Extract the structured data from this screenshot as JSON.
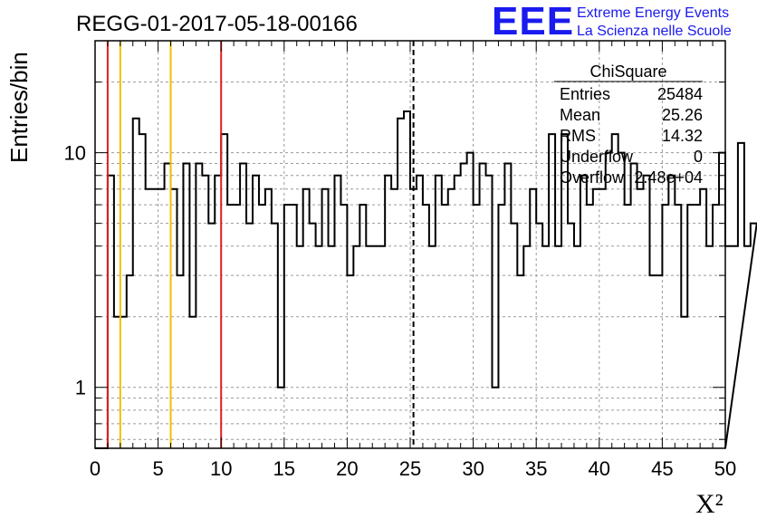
{
  "header": {
    "title": "REGG-01-2017-05-18-00166",
    "logo_text": "EEE",
    "logo_line1": "Extreme Energy Events",
    "logo_line2": "La Scienza nelle Scuole"
  },
  "stats": {
    "title": "ChiSquare",
    "rows": [
      {
        "label": "Entries",
        "value": "25484"
      },
      {
        "label": "Mean",
        "value": "25.26"
      },
      {
        "label": "RMS",
        "value": "14.32"
      },
      {
        "label": "Underflow",
        "value": "0"
      },
      {
        "label": "Overflow",
        "value": "2.48e+04"
      }
    ]
  },
  "chart_data": {
    "type": "bar",
    "title": "REGG-01-2017-05-18-00166",
    "xlabel": "X²",
    "ylabel": "Entries/bin",
    "xlim": [
      0,
      50
    ],
    "ylim": [
      0.55,
      30
    ],
    "log_y": true,
    "grid": true,
    "bin_width": 0.5,
    "x_ticks": [
      "0",
      "5",
      "10",
      "15",
      "20",
      "25",
      "30",
      "35",
      "40",
      "45",
      "50"
    ],
    "y_ticks": [
      "1",
      "10"
    ],
    "values": [
      0,
      0,
      8,
      2,
      2,
      3,
      14,
      12,
      7,
      7,
      7,
      9,
      7,
      3,
      9,
      2,
      9,
      8,
      5,
      8,
      12,
      6,
      6,
      9,
      5,
      8,
      6,
      7,
      5,
      1,
      6,
      6,
      4,
      7,
      5,
      4,
      7,
      4,
      8,
      6,
      3,
      4,
      6,
      4,
      4,
      4,
      8,
      7,
      14,
      15,
      7,
      8,
      6,
      4,
      8,
      6,
      7,
      8,
      9,
      10,
      6,
      9,
      8,
      1,
      6,
      9,
      5,
      3,
      4,
      7,
      5,
      4,
      12,
      4,
      12,
      5,
      4,
      8,
      6,
      7,
      7,
      10,
      12,
      10,
      6,
      9,
      7,
      8,
      3,
      3,
      6,
      8,
      6,
      2,
      6,
      6,
      7,
      4,
      6,
      10,
      4,
      4,
      11,
      4,
      5
    ],
    "vertical_lines": [
      {
        "x": 1,
        "color": "#e02020",
        "style": "solid"
      },
      {
        "x": 2,
        "color": "#f0c000",
        "style": "solid"
      },
      {
        "x": 6,
        "color": "#f0c000",
        "style": "solid"
      },
      {
        "x": 10,
        "color": "#e02020",
        "style": "solid"
      },
      {
        "x": 25.26,
        "color": "#000000",
        "style": "dashed"
      }
    ],
    "logo_color": "#1a1aee"
  }
}
